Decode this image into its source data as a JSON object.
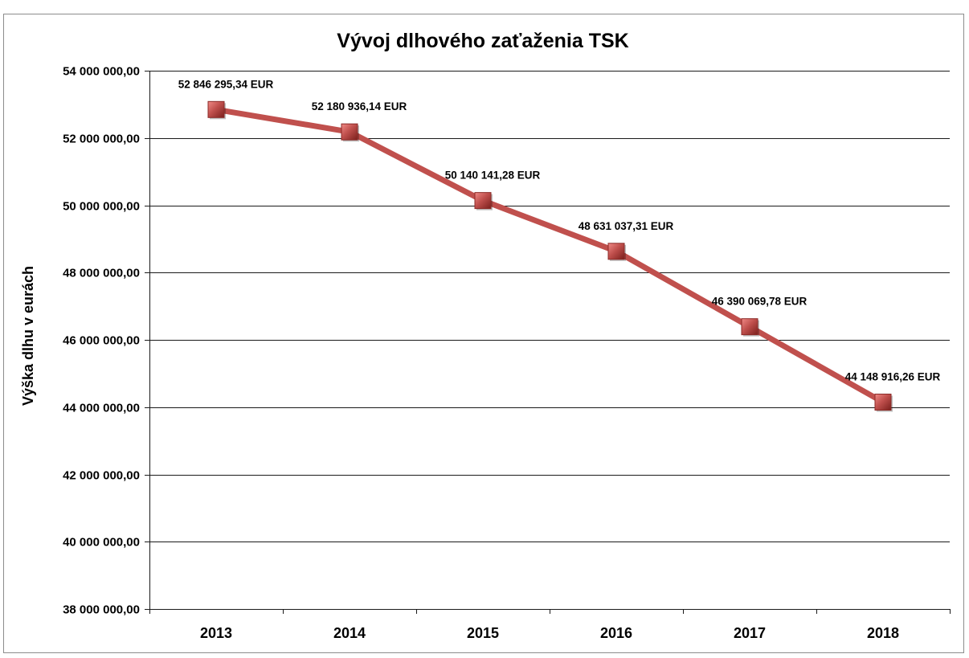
{
  "chart_data": {
    "type": "line",
    "title": "Vývoj dlhového zaťaženia TSK",
    "ylabel": "Výška dlhu v eurách",
    "xlabel": "",
    "categories": [
      "2013",
      "2014",
      "2015",
      "2016",
      "2017",
      "2018"
    ],
    "series": [
      {
        "values": [
          52846295.34,
          52180936.14,
          50140141.28,
          48631037.31,
          46390069.78,
          44148916.26
        ],
        "labels": [
          "52 846 295,34 EUR",
          "52 180 936,14 EUR",
          "50 140 141,28 EUR",
          "48 631 037,31 EUR",
          "46 390 069,78 EUR",
          "44 148 916,26 EUR"
        ],
        "color": "#c0504d"
      }
    ],
    "ylim": [
      38000000,
      54000000
    ],
    "y_ticks": [
      54000000,
      52000000,
      50000000,
      48000000,
      46000000,
      44000000,
      42000000,
      40000000,
      38000000
    ],
    "y_tick_labels": [
      "54 000 000,00",
      "52 000 000,00",
      "50 000 000,00",
      "48 000 000,00",
      "46 000 000,00",
      "44 000 000,00",
      "42 000 000,00",
      "40 000 000,00",
      "38 000 000,00"
    ],
    "grid": true,
    "legend": "none",
    "marker": "square",
    "colors": {
      "line": "#c0504d",
      "marker": "#c0504d",
      "grid": "#1a1a1a"
    }
  }
}
